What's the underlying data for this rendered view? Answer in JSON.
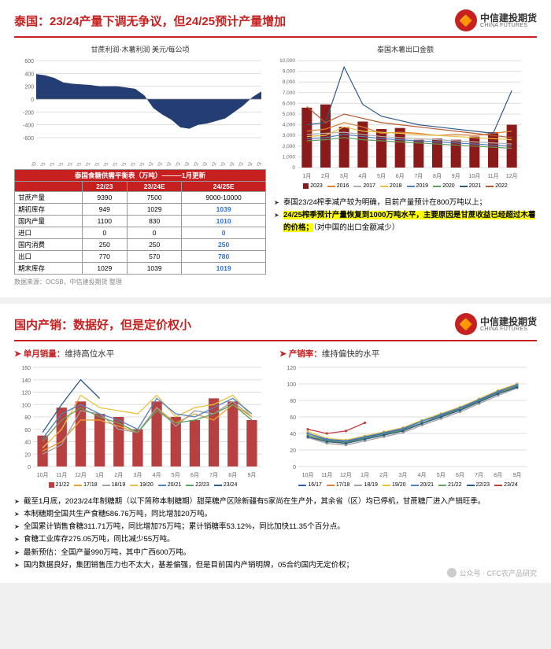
{
  "logo": {
    "cn": "中信建投期货",
    "en": "CHINA FUTURES",
    "glyph": "●"
  },
  "slide1": {
    "title": "泰国：23/24产量下调无争议，但24/25预计产量增加",
    "chart_left": {
      "title": "甘蔗利润-木薯利润 美元/每公顷",
      "type": "area",
      "ylim": [
        -600,
        600
      ],
      "yticks": [
        -600,
        -400,
        -200,
        0,
        200,
        400,
        600
      ],
      "xlabels": [
        "Dec-20",
        "Jan-21",
        "Feb-21",
        "Mar-21",
        "Apr-21",
        "May-21",
        "Jun-21",
        "Jul-21",
        "Aug-21",
        "Sep-21",
        "Oct-21",
        "Nov-21",
        "Dec-21",
        "Jan-22",
        "Feb-22",
        "Mar-22",
        "Apr-22",
        "May-22",
        "Jun-22",
        "Jul-22",
        "Aug-22",
        "Sep-22",
        "Oct-22",
        "Nov-22",
        "Dec-22",
        "Jan-23"
      ],
      "values": [
        390,
        370,
        330,
        260,
        240,
        230,
        220,
        200,
        200,
        200,
        180,
        160,
        60,
        -140,
        -240,
        -320,
        -440,
        -460,
        -400,
        -380,
        -340,
        -300,
        -200,
        -100,
        30,
        120
      ],
      "fill": "#243d72",
      "grid": "#dddddd",
      "text": "#666666",
      "bg": "#ffffff"
    },
    "chart_right": {
      "title": "泰国木薯出口金额",
      "type": "grouped-bar-line",
      "ylim": [
        0,
        10000
      ],
      "yticks": [
        0,
        1000,
        2000,
        3000,
        4000,
        5000,
        6000,
        7000,
        8000,
        9000,
        10000
      ],
      "xlabels": [
        "1月",
        "2月",
        "3月",
        "4月",
        "5月",
        "6月",
        "7月",
        "8月",
        "9月",
        "10月",
        "11月",
        "12月"
      ],
      "series": [
        {
          "name": "2023",
          "color": "#8b1a1a",
          "kind": "bar",
          "values": [
            5600,
            5900,
            3800,
            4300,
            3600,
            3700,
            2600,
            2700,
            2600,
            2900,
            3300,
            4000
          ]
        },
        {
          "name": "2016",
          "color": "#e08030",
          "kind": "line",
          "values": [
            3400,
            3600,
            4200,
            3800,
            3200,
            3300,
            3200,
            3000,
            3100,
            3000,
            3200,
            3400
          ]
        },
        {
          "name": "2017",
          "color": "#b0b0b0",
          "kind": "line",
          "values": [
            3100,
            3200,
            3300,
            3100,
            2900,
            2800,
            2700,
            2600,
            2500,
            2400,
            2300,
            2200
          ]
        },
        {
          "name": "2018",
          "color": "#e8c040",
          "kind": "line",
          "values": [
            2900,
            3000,
            3800,
            3400,
            3300,
            3200,
            3100,
            3000,
            2900,
            2800,
            2700,
            2600
          ]
        },
        {
          "name": "2019",
          "color": "#5080c0",
          "kind": "line",
          "values": [
            2700,
            2800,
            3100,
            2900,
            2700,
            2600,
            2500,
            2400,
            2300,
            2200,
            2100,
            2000
          ]
        },
        {
          "name": "2020",
          "color": "#60a060",
          "kind": "line",
          "values": [
            2500,
            2600,
            2800,
            2600,
            2500,
            2400,
            2300,
            2200,
            2100,
            2000,
            1900,
            1800
          ]
        },
        {
          "name": "2021",
          "color": "#2e5a8a",
          "kind": "line",
          "values": [
            4000,
            4200,
            9400,
            5900,
            4800,
            4400,
            4000,
            3800,
            3600,
            3400,
            3200,
            7200
          ]
        },
        {
          "name": "2022",
          "color": "#b35a2e",
          "kind": "line",
          "values": [
            5700,
            4200,
            5000,
            4600,
            4200,
            4000,
            3800,
            3600,
            3400,
            3200,
            3000,
            2800
          ]
        }
      ],
      "grid": "#dddddd",
      "text": "#666666"
    },
    "table": {
      "header_main": "泰国食糖供需平衡表（万吨）———1月更新",
      "cols": [
        "",
        "22/23",
        "23/24E",
        "24/25E"
      ],
      "rows": [
        {
          "k": "甘蔗产量",
          "v": [
            "9390",
            "7500",
            "9000-10000"
          ],
          "hl": [
            false,
            false,
            false
          ]
        },
        {
          "k": "期初库存",
          "v": [
            "949",
            "1029",
            "1039"
          ],
          "hl": [
            false,
            false,
            true
          ]
        },
        {
          "k": "国内产量",
          "v": [
            "1100",
            "830",
            "1010"
          ],
          "hl": [
            false,
            false,
            true
          ]
        },
        {
          "k": "进口",
          "v": [
            "0",
            "0",
            "0"
          ],
          "hl": [
            false,
            false,
            true
          ]
        },
        {
          "k": "国内消费",
          "v": [
            "250",
            "250",
            "250"
          ],
          "hl": [
            false,
            false,
            true
          ]
        },
        {
          "k": "出口",
          "v": [
            "770",
            "570",
            "780"
          ],
          "hl": [
            false,
            false,
            true
          ]
        },
        {
          "k": "期末库存",
          "v": [
            "1029",
            "1039",
            "1019"
          ],
          "hl": [
            false,
            false,
            true
          ]
        }
      ],
      "hl_color": "#3070d0"
    },
    "source": "数据来源：OCSB，中信建投期货 整理",
    "notes": [
      {
        "text": "泰国23/24榨季减产较为明确，目前产量预计在800万吨以上；",
        "hl": false
      },
      {
        "text": "24/25榨季预计产量恢复到1000万吨水平，主要原因是甘蔗收益已经超过木薯的价格；",
        "suffix": "（对中国的出口金额减少）",
        "hl": true
      }
    ]
  },
  "slide2": {
    "title": "国内产销：数据好，但是定价权小",
    "sub_left": {
      "label": "单月销量：",
      "rest": "维持高位水平"
    },
    "sub_right": {
      "label": "产销率：",
      "rest": "维持偏快的水平"
    },
    "chart_left": {
      "type": "bar-line",
      "ylim": [
        0,
        160
      ],
      "yticks": [
        0,
        20,
        40,
        60,
        80,
        100,
        120,
        140,
        160
      ],
      "xlabels": [
        "10月",
        "11月",
        "12月",
        "1月",
        "2月",
        "3月",
        "4月",
        "5月",
        "6月",
        "7月",
        "8月",
        "9月"
      ],
      "bar": {
        "name": "21/22",
        "color": "#b84040",
        "values": [
          50,
          95,
          105,
          85,
          80,
          60,
          105,
          80,
          75,
          110,
          105,
          75
        ]
      },
      "lines": [
        {
          "name": "17/18",
          "color": "#e8a030",
          "values": [
            25,
            40,
            75,
            75,
            65,
            55,
            95,
            70,
            85,
            75,
            100,
            80
          ]
        },
        {
          "name": "18/19",
          "color": "#a0a0a0",
          "values": [
            20,
            35,
            90,
            85,
            60,
            55,
            95,
            65,
            90,
            85,
            105,
            80
          ]
        },
        {
          "name": "19/20",
          "color": "#e8c040",
          "values": [
            30,
            60,
            115,
            95,
            90,
            85,
            115,
            80,
            95,
            100,
            115,
            80
          ]
        },
        {
          "name": "20/21",
          "color": "#5080c0",
          "values": [
            45,
            85,
            100,
            85,
            75,
            60,
            110,
            85,
            80,
            95,
            110,
            85
          ]
        },
        {
          "name": "22/23",
          "color": "#60a060",
          "values": [
            40,
            75,
            95,
            80,
            70,
            55,
            90,
            70,
            75,
            85,
            100,
            75
          ]
        },
        {
          "name": "23/24",
          "color": "#2e5a8a",
          "values": [
            55,
            100,
            140,
            110,
            null,
            null,
            null,
            null,
            null,
            null,
            null,
            null
          ]
        }
      ],
      "grid": "#dddddd"
    },
    "chart_right": {
      "type": "line",
      "ylim": [
        0,
        120
      ],
      "yticks": [
        0,
        20,
        40,
        60,
        80,
        100,
        120
      ],
      "xlabels": [
        "10月",
        "11月",
        "12月",
        "1月",
        "2月",
        "3月",
        "4月",
        "5月",
        "6月",
        "7月",
        "8月",
        "9月"
      ],
      "lines": [
        {
          "name": "16/17",
          "color": "#3060b0",
          "values": [
            40,
            32,
            30,
            35,
            40,
            45,
            55,
            62,
            70,
            80,
            90,
            98
          ]
        },
        {
          "name": "17/18",
          "color": "#e08030",
          "values": [
            38,
            30,
            28,
            33,
            38,
            43,
            52,
            60,
            68,
            78,
            88,
            100
          ]
        },
        {
          "name": "18/19",
          "color": "#a0a0a0",
          "values": [
            35,
            28,
            26,
            31,
            36,
            41,
            50,
            58,
            66,
            76,
            86,
            95
          ]
        },
        {
          "name": "19/20",
          "color": "#e8c040",
          "values": [
            42,
            34,
            32,
            37,
            42,
            47,
            56,
            64,
            72,
            82,
            92,
            100
          ]
        },
        {
          "name": "20/21",
          "color": "#5080c0",
          "values": [
            40,
            33,
            31,
            36,
            41,
            46,
            55,
            63,
            71,
            81,
            91,
            99
          ]
        },
        {
          "name": "21/22",
          "color": "#60a060",
          "values": [
            38,
            31,
            29,
            34,
            39,
            44,
            53,
            61,
            69,
            79,
            89,
            97
          ]
        },
        {
          "name": "22/23",
          "color": "#2e5a8a",
          "values": [
            36,
            30,
            28,
            33,
            38,
            43,
            52,
            60,
            68,
            78,
            88,
            96
          ]
        },
        {
          "name": "23/24",
          "color": "#c04040",
          "values": [
            45,
            40,
            43,
            53,
            null,
            null,
            null,
            null,
            null,
            null,
            null,
            null
          ]
        }
      ],
      "grid": "#dddddd"
    },
    "bullets": [
      "截至1月底，2023/24年制糖期（以下简称本制糖期）甜菜糖产区除新疆有5家尚在生产外，其余省（区）均已停机，甘蔗糖厂进入产销旺季。",
      "本制糖期全国共生产食糖586.76万吨，同比增加20万吨。",
      "全国累计销售食糖311.71万吨，同比增加75万吨；累计销糖率53.12%，同比加快11.35个百分点。",
      "食糖工业库存275.05万吨，同比减少55万吨。",
      "最新预估：全国产量990万吨，其中广西600万吨。",
      "国内数据良好，集团销售压力也不太大，基差偏强，但是目前国内产销明牌，05合约国内无定价权；"
    ],
    "footer": "公众号 · CFC农产品研究"
  }
}
